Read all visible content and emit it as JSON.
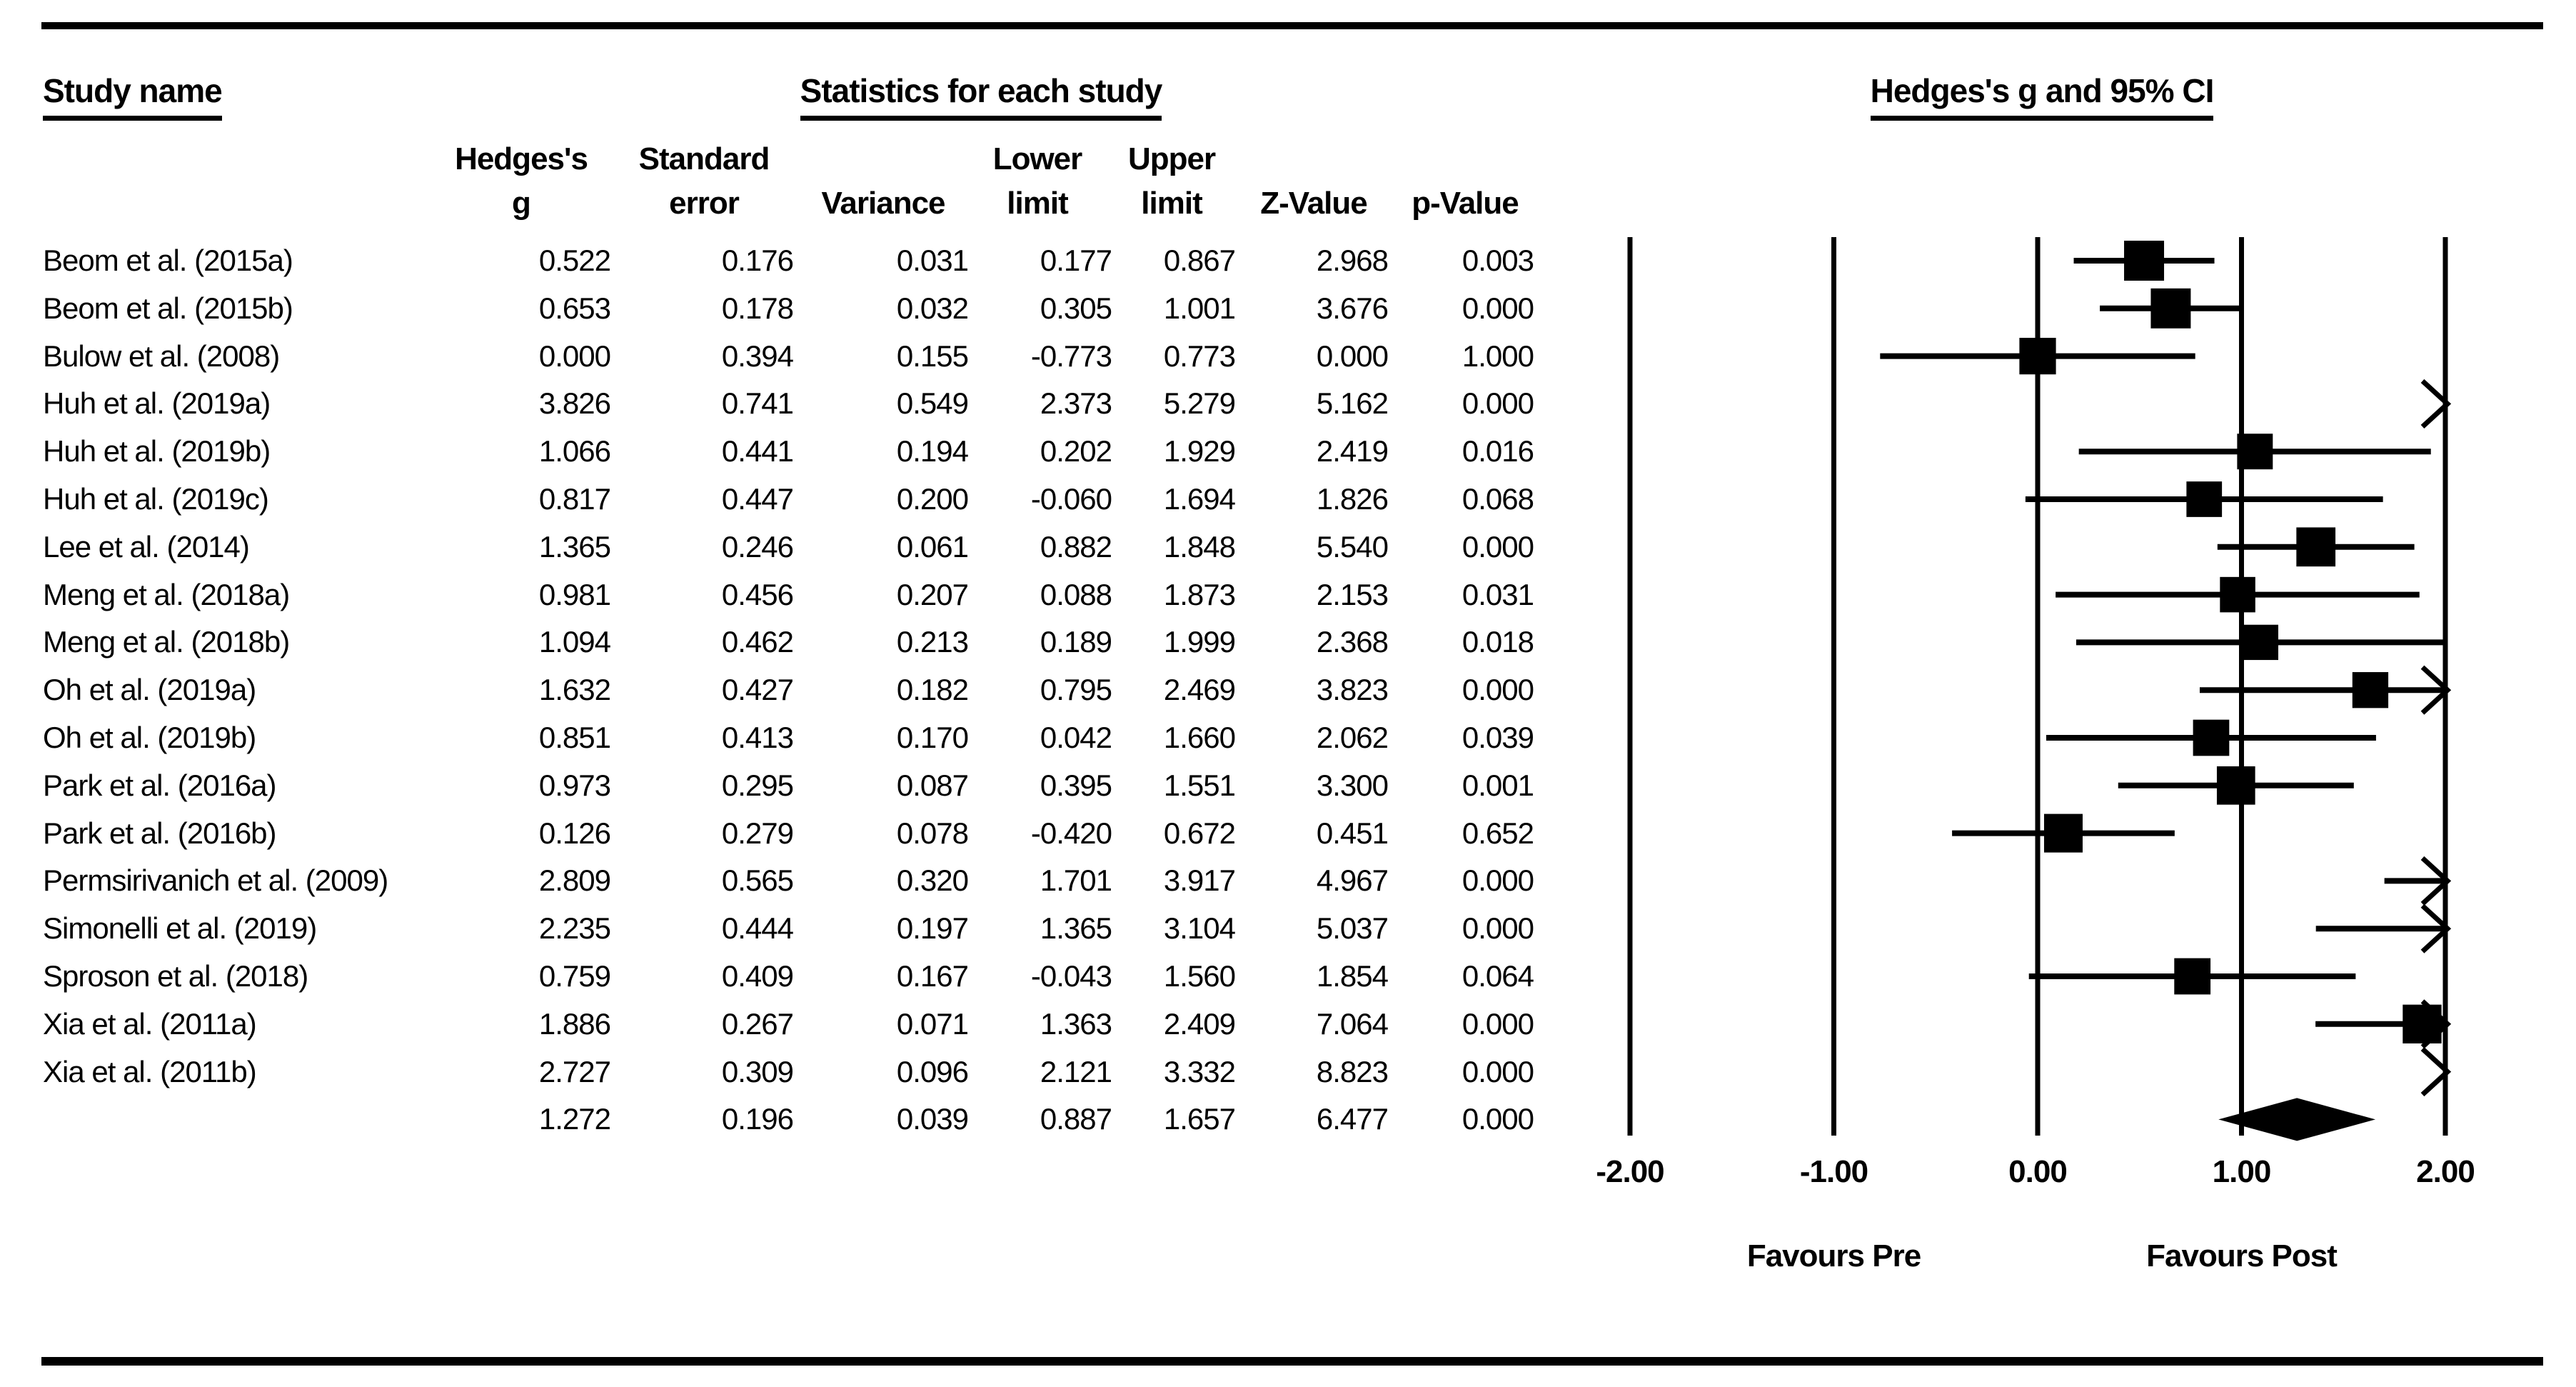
{
  "page": {
    "left_header": "Study name",
    "center_header": "Statistics for each study",
    "right_header": "Hedges's g and 95% CI"
  },
  "table": {
    "column_headers": [
      {
        "line1": "Hedges's",
        "line2": "g"
      },
      {
        "line1": "Standard",
        "line2": "error"
      },
      {
        "line1": "",
        "line2": "Variance"
      },
      {
        "line1": "Lower",
        "line2": "limit"
      },
      {
        "line1": "Upper",
        "line2": "limit"
      },
      {
        "line1": "",
        "line2": "Z-Value"
      },
      {
        "line1": "",
        "line2": "p-Value"
      }
    ]
  },
  "chart_data": {
    "type": "forest",
    "title": "Hedges's g and 95% CI",
    "effect_measure": "Hedges's g",
    "xlim": [
      -2,
      2
    ],
    "x_tick_values": [
      -2,
      -1,
      0,
      1,
      2
    ],
    "x_tick_labels": [
      "-2.00",
      "-1.00",
      "0.00",
      "1.00",
      "2.00"
    ],
    "xlabel_left": "Favours Pre",
    "xlabel_right": "Favours Post",
    "grid": false,
    "studies": [
      {
        "name": "Beom et al. (2015a)",
        "g": 0.522,
        "se": 0.176,
        "variance": 0.031,
        "lower": 0.177,
        "upper": 0.867,
        "z": 2.968,
        "p": 0.003
      },
      {
        "name": "Beom et al. (2015b)",
        "g": 0.653,
        "se": 0.178,
        "variance": 0.032,
        "lower": 0.305,
        "upper": 1.001,
        "z": 3.676,
        "p": 0.0
      },
      {
        "name": "Bulow et al. (2008)",
        "g": 0.0,
        "se": 0.394,
        "variance": 0.155,
        "lower": -0.773,
        "upper": 0.773,
        "z": 0.0,
        "p": 1.0
      },
      {
        "name": "Huh et al. (2019a)",
        "g": 3.826,
        "se": 0.741,
        "variance": 0.549,
        "lower": 2.373,
        "upper": 5.279,
        "z": 5.162,
        "p": 0.0
      },
      {
        "name": "Huh et al. (2019b)",
        "g": 1.066,
        "se": 0.441,
        "variance": 0.194,
        "lower": 0.202,
        "upper": 1.929,
        "z": 2.419,
        "p": 0.016
      },
      {
        "name": "Huh et al. (2019c)",
        "g": 0.817,
        "se": 0.447,
        "variance": 0.2,
        "lower": -0.06,
        "upper": 1.694,
        "z": 1.826,
        "p": 0.068
      },
      {
        "name": "Lee et al. (2014)",
        "g": 1.365,
        "se": 0.246,
        "variance": 0.061,
        "lower": 0.882,
        "upper": 1.848,
        "z": 5.54,
        "p": 0.0
      },
      {
        "name": "Meng et al. (2018a)",
        "g": 0.981,
        "se": 0.456,
        "variance": 0.207,
        "lower": 0.088,
        "upper": 1.873,
        "z": 2.153,
        "p": 0.031
      },
      {
        "name": "Meng et al. (2018b)",
        "g": 1.094,
        "se": 0.462,
        "variance": 0.213,
        "lower": 0.189,
        "upper": 1.999,
        "z": 2.368,
        "p": 0.018
      },
      {
        "name": "Oh et al. (2019a)",
        "g": 1.632,
        "se": 0.427,
        "variance": 0.182,
        "lower": 0.795,
        "upper": 2.469,
        "z": 3.823,
        "p": 0.0
      },
      {
        "name": "Oh et al. (2019b)",
        "g": 0.851,
        "se": 0.413,
        "variance": 0.17,
        "lower": 0.042,
        "upper": 1.66,
        "z": 2.062,
        "p": 0.039
      },
      {
        "name": "Park et al. (2016a)",
        "g": 0.973,
        "se": 0.295,
        "variance": 0.087,
        "lower": 0.395,
        "upper": 1.551,
        "z": 3.3,
        "p": 0.001
      },
      {
        "name": "Park et al. (2016b)",
        "g": 0.126,
        "se": 0.279,
        "variance": 0.078,
        "lower": -0.42,
        "upper": 0.672,
        "z": 0.451,
        "p": 0.652
      },
      {
        "name": "Permsirivanich et al. (2009)",
        "g": 2.809,
        "se": 0.565,
        "variance": 0.32,
        "lower": 1.701,
        "upper": 3.917,
        "z": 4.967,
        "p": 0.0
      },
      {
        "name": "Simonelli et al. (2019)",
        "g": 2.235,
        "se": 0.444,
        "variance": 0.197,
        "lower": 1.365,
        "upper": 3.104,
        "z": 5.037,
        "p": 0.0
      },
      {
        "name": "Sproson et al. (2018)",
        "g": 0.759,
        "se": 0.409,
        "variance": 0.167,
        "lower": -0.043,
        "upper": 1.56,
        "z": 1.854,
        "p": 0.064
      },
      {
        "name": "Xia et al. (2011a)",
        "g": 1.886,
        "se": 0.267,
        "variance": 0.071,
        "lower": 1.363,
        "upper": 2.409,
        "z": 7.064,
        "p": 0.0
      },
      {
        "name": "Xia et al. (2011b)",
        "g": 2.727,
        "se": 0.309,
        "variance": 0.096,
        "lower": 2.121,
        "upper": 3.332,
        "z": 8.823,
        "p": 0.0
      }
    ],
    "summary": {
      "name": "",
      "g": 1.272,
      "se": 0.196,
      "variance": 0.039,
      "lower": 0.887,
      "upper": 1.657,
      "z": 6.477,
      "p": 0.0
    }
  },
  "colors": {
    "ink": "#000000",
    "background": "#ffffff"
  }
}
